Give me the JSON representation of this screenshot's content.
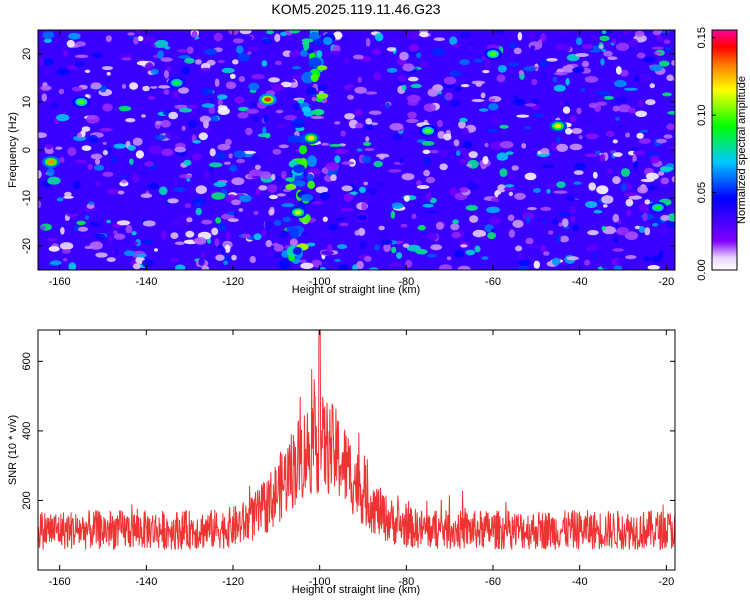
{
  "title": "KOM5.2025.119.11.46.G23",
  "chart_data": [
    {
      "type": "heatmap",
      "xlabel": "Height of straight line (km)",
      "ylabel": "Frequency (Hz)",
      "xlim": [
        -165,
        -18
      ],
      "ylim": [
        -25,
        25
      ],
      "x_ticks": [
        -160,
        -140,
        -120,
        -100,
        -80,
        -60,
        -40,
        -20
      ],
      "y_ticks": [
        -20,
        -10,
        0,
        10,
        20
      ],
      "colorbar": {
        "label": "Normalized spectral amplitude",
        "range": [
          0,
          0.155
        ],
        "ticks": [
          0.0,
          0.05,
          0.1,
          0.15
        ],
        "tick_labels": [
          "0.00",
          "0.05",
          "0.10",
          "0.15"
        ],
        "colormap": [
          "#ffffff",
          "#8000ff",
          "#0000ff",
          "#00c8ff",
          "#00ff00",
          "#ffff00",
          "#ff8000",
          "#ff0000",
          "#ff00a0"
        ]
      },
      "ridge": {
        "description_values": "enhanced amplitude streak",
        "x_range": [
          -112,
          -95
        ],
        "freq_range": [
          -25,
          25
        ]
      },
      "peaks": [
        {
          "x": -112,
          "freq": 10.5,
          "value": 0.14
        },
        {
          "x": -162,
          "freq": -2.5,
          "value": 0.13
        },
        {
          "x": -102,
          "freq": 2.5,
          "value": 0.12
        },
        {
          "x": -45,
          "freq": 5,
          "value": 0.12
        },
        {
          "x": -105,
          "freq": -13,
          "value": 0.11
        },
        {
          "x": -155,
          "freq": 10,
          "value": 0.1
        },
        {
          "x": -75,
          "freq": 4,
          "value": 0.1
        },
        {
          "x": -60,
          "freq": 20,
          "value": 0.1
        },
        {
          "x": -133,
          "freq": 14,
          "value": 0.09
        },
        {
          "x": -22,
          "freq": -12,
          "value": 0.09
        }
      ]
    },
    {
      "type": "line",
      "xlabel": "Height of straight line (km)",
      "ylabel": "SNR (10 * v/v)",
      "xlim": [
        -165,
        -18
      ],
      "ylim": [
        0,
        690
      ],
      "x_ticks": [
        -160,
        -140,
        -120,
        -100,
        -80,
        -60,
        -40,
        -20
      ],
      "y_ticks": [
        200,
        400,
        600
      ],
      "series": [
        {
          "color": "#ee3333",
          "x_range": [
            -165,
            -18
          ],
          "baseline": 115,
          "noise_amplitude": 95,
          "peak": {
            "x": -100,
            "value": 690,
            "envelope_max": 360,
            "half_width_km": 11
          },
          "sample_points": [
            {
              "x": -160,
              "y": 120
            },
            {
              "x": -140,
              "y": 140
            },
            {
              "x": -120,
              "y": 170
            },
            {
              "x": -110,
              "y": 280
            },
            {
              "x": -105,
              "y": 380
            },
            {
              "x": -100,
              "y": 430
            },
            {
              "x": -95,
              "y": 360
            },
            {
              "x": -90,
              "y": 220
            },
            {
              "x": -80,
              "y": 140
            },
            {
              "x": -60,
              "y": 120
            },
            {
              "x": -40,
              "y": 115
            },
            {
              "x": -20,
              "y": 110
            }
          ]
        }
      ]
    }
  ]
}
